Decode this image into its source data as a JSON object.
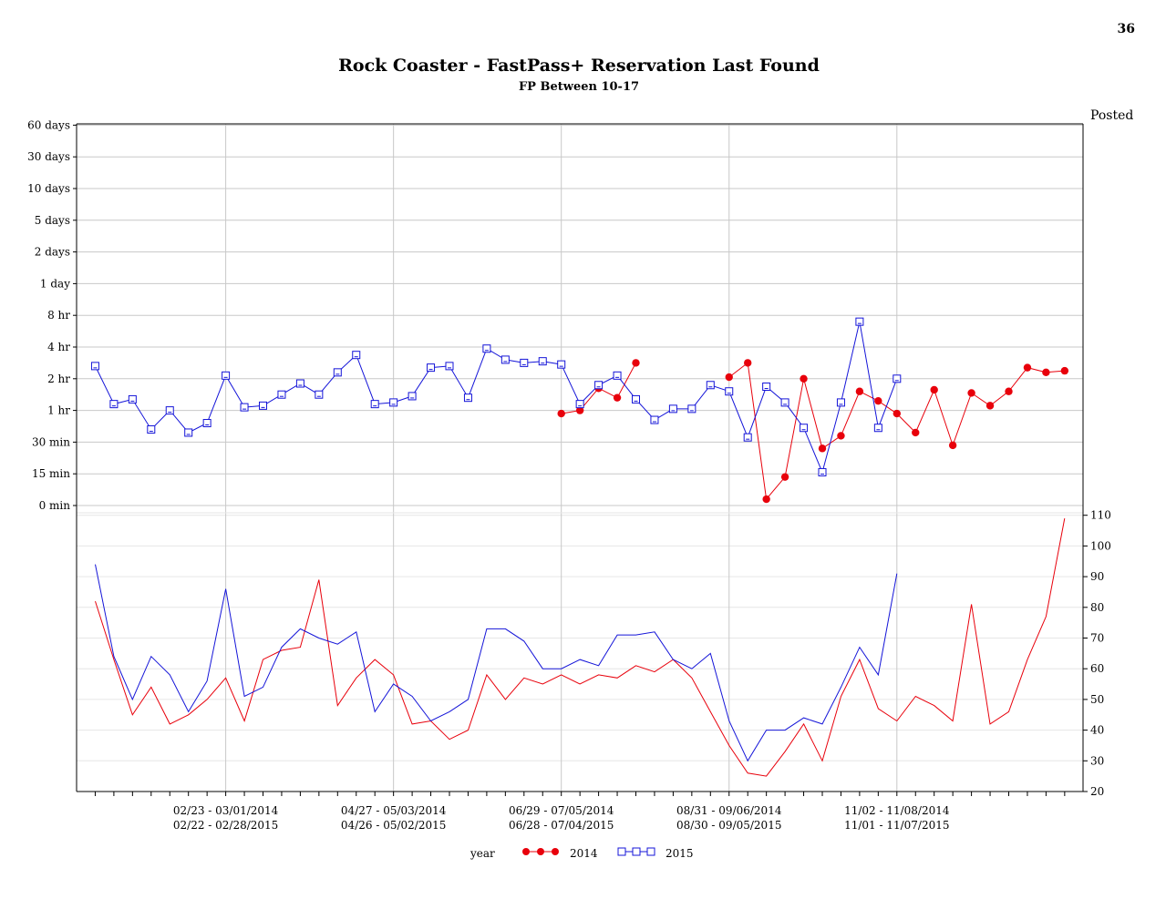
{
  "page_number": "36",
  "chart_data": {
    "type": "line",
    "title": "Rock Coaster - FastPass+ Reservation Last Found",
    "subtitle": "FP Between 10-17",
    "right_axis_label": "Posted",
    "legend": {
      "title": "year",
      "position": "bottom-center"
    },
    "grid": true,
    "x_tick_labels": [
      {
        "index": 8,
        "lines": [
          "02/23 - 03/01/2014",
          "02/22 - 02/28/2015"
        ]
      },
      {
        "index": 17,
        "lines": [
          "04/27 - 05/03/2014",
          "04/26 - 05/02/2015"
        ]
      },
      {
        "index": 26,
        "lines": [
          "06/29 - 07/05/2014",
          "06/28 - 07/04/2015"
        ]
      },
      {
        "index": 35,
        "lines": [
          "08/31 - 09/06/2014",
          "08/30 - 09/05/2015"
        ]
      },
      {
        "index": 44,
        "lines": [
          "11/02 - 11/08/2014",
          "11/01 - 11/07/2015"
        ]
      }
    ],
    "x_count": 53,
    "fp_axis": {
      "scale": "ordinal",
      "ticks": [
        "0 min",
        "15 min",
        "30 min",
        "1 hr",
        "2 hr",
        "4 hr",
        "8 hr",
        "1 day",
        "2 days",
        "5 days",
        "10 days",
        "30 days",
        "60 days"
      ]
    },
    "posted_axis": {
      "ylim": [
        20,
        110
      ],
      "ticks": [
        20,
        30,
        40,
        50,
        60,
        70,
        80,
        90,
        100,
        110
      ]
    },
    "series": [
      {
        "name": "2014",
        "color": "#e8000b",
        "marker": "filled-circle",
        "fp_start_index": 26,
        "fp_values": [
          2.9,
          3.0,
          3.7,
          3.4,
          4.5,
          null,
          null,
          null,
          null,
          4.05,
          4.5,
          0.2,
          0.9,
          4.0,
          1.8,
          2.2,
          3.6,
          3.3,
          2.9,
          2.3,
          3.65,
          1.9,
          3.55,
          3.15,
          3.6,
          4.35,
          4.2,
          4.25
        ],
        "posted_start_index": 1,
        "posted_values": [
          82,
          63,
          45,
          54,
          42,
          45,
          50,
          57,
          43,
          63,
          66,
          67,
          89,
          48,
          57,
          63,
          58,
          42,
          43,
          37,
          40,
          58,
          50,
          57,
          55,
          58,
          55,
          58,
          57,
          61,
          59,
          63,
          57,
          46,
          35,
          26,
          25,
          33,
          42,
          30,
          51,
          63,
          47,
          43,
          51,
          48,
          43,
          81,
          42,
          46,
          63,
          77,
          109
        ]
      },
      {
        "name": "2015",
        "color": "#1414d8",
        "marker": "open-square",
        "fp_start_index": 1,
        "fp_values": [
          4.4,
          3.2,
          3.35,
          2.4,
          3.0,
          2.3,
          2.6,
          4.1,
          3.1,
          3.15,
          3.5,
          3.85,
          3.5,
          4.2,
          4.75,
          3.2,
          3.25,
          3.45,
          4.35,
          4.4,
          3.4,
          4.95,
          4.6,
          4.5,
          4.55,
          4.45,
          3.2,
          3.8,
          4.1,
          3.35,
          2.7,
          3.05,
          3.05,
          3.8,
          3.6,
          2.15,
          3.75,
          3.25,
          2.45,
          1.05,
          3.25,
          5.8,
          2.45,
          4.0
        ],
        "posted_start_index": 1,
        "posted_values": [
          94,
          64,
          50,
          64,
          58,
          46,
          56,
          86,
          51,
          54,
          67,
          73,
          70,
          68,
          72,
          46,
          55,
          51,
          43,
          46,
          50,
          73,
          73,
          69,
          60,
          60,
          63,
          61,
          71,
          71,
          72,
          63,
          60,
          65,
          43,
          30,
          40,
          40,
          44,
          42,
          54,
          67,
          58,
          91
        ]
      }
    ]
  }
}
